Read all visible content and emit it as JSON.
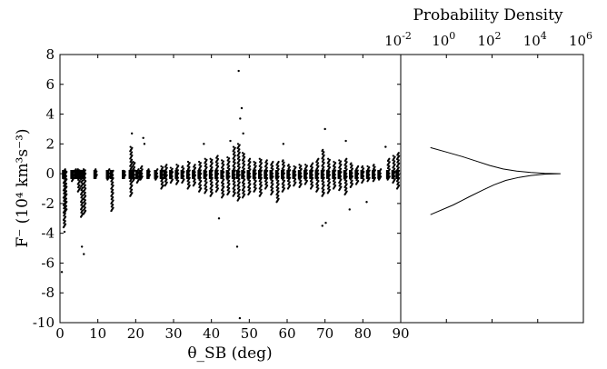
{
  "chart_data": [
    {
      "type": "scatter",
      "xlabel": "θ_SB (deg)",
      "ylabel": "F⁻ (10⁴ km³s⁻³)",
      "xlim": [
        0,
        90
      ],
      "ylim": [
        -10,
        8
      ],
      "xticks": [
        0,
        10,
        20,
        30,
        40,
        50,
        60,
        70,
        80,
        90
      ],
      "yticks": [
        -10,
        -8,
        -6,
        -4,
        -2,
        0,
        2,
        4,
        6,
        8
      ],
      "grid": false,
      "color": "#000000",
      "clusters": [
        {
          "x": 1.2,
          "lo": -3.6,
          "hi": 0.3
        },
        {
          "x": 1.5,
          "lo": -2.6,
          "hi": 0.2
        },
        {
          "x": 3.4,
          "lo": -0.5,
          "hi": 0.2
        },
        {
          "x": 4.3,
          "lo": -0.3,
          "hi": 0.3
        },
        {
          "x": 5.0,
          "lo": -1.2,
          "hi": 0.3
        },
        {
          "x": 5.8,
          "lo": -2.9,
          "hi": 0.2
        },
        {
          "x": 6.5,
          "lo": -2.7,
          "hi": 0.3
        },
        {
          "x": 9.5,
          "lo": -0.3,
          "hi": 0.3
        },
        {
          "x": 12.8,
          "lo": -0.4,
          "hi": 0.3
        },
        {
          "x": 13.8,
          "lo": -2.5,
          "hi": 0.2
        },
        {
          "x": 17.0,
          "lo": -0.3,
          "hi": 0.2
        },
        {
          "x": 18.8,
          "lo": -1.5,
          "hi": 1.8
        },
        {
          "x": 19.5,
          "lo": -0.5,
          "hi": 0.8
        },
        {
          "x": 20.6,
          "lo": -0.6,
          "hi": 0.3
        },
        {
          "x": 21.5,
          "lo": -0.4,
          "hi": 0.5
        },
        {
          "x": 23.5,
          "lo": -0.3,
          "hi": 0.3
        },
        {
          "x": 25.5,
          "lo": -0.4,
          "hi": 0.3
        },
        {
          "x": 27.0,
          "lo": -1.0,
          "hi": 0.5
        },
        {
          "x": 28.0,
          "lo": -0.8,
          "hi": 0.6
        },
        {
          "x": 29.5,
          "lo": -0.6,
          "hi": 0.4
        },
        {
          "x": 31.0,
          "lo": -0.7,
          "hi": 0.6
        },
        {
          "x": 32.5,
          "lo": -0.6,
          "hi": 0.5
        },
        {
          "x": 34.0,
          "lo": -1.0,
          "hi": 0.8
        },
        {
          "x": 35.5,
          "lo": -0.8,
          "hi": 0.6
        },
        {
          "x": 37.0,
          "lo": -1.2,
          "hi": 0.8
        },
        {
          "x": 38.5,
          "lo": -1.3,
          "hi": 1.0
        },
        {
          "x": 40.0,
          "lo": -1.5,
          "hi": 1.0
        },
        {
          "x": 41.5,
          "lo": -1.2,
          "hi": 1.2
        },
        {
          "x": 43.0,
          "lo": -1.6,
          "hi": 0.9
        },
        {
          "x": 44.5,
          "lo": -1.4,
          "hi": 1.1
        },
        {
          "x": 46.0,
          "lo": -1.5,
          "hi": 1.8
        },
        {
          "x": 47.2,
          "lo": -1.8,
          "hi": 2.0
        },
        {
          "x": 48.5,
          "lo": -1.6,
          "hi": 1.4
        },
        {
          "x": 50.0,
          "lo": -1.4,
          "hi": 1.0
        },
        {
          "x": 51.5,
          "lo": -1.2,
          "hi": 0.8
        },
        {
          "x": 53.0,
          "lo": -1.5,
          "hi": 1.0
        },
        {
          "x": 54.5,
          "lo": -1.0,
          "hi": 0.9
        },
        {
          "x": 56.0,
          "lo": -1.4,
          "hi": 0.8
        },
        {
          "x": 57.5,
          "lo": -1.9,
          "hi": 0.8
        },
        {
          "x": 59.0,
          "lo": -1.2,
          "hi": 0.9
        },
        {
          "x": 60.5,
          "lo": -1.0,
          "hi": 0.6
        },
        {
          "x": 62.0,
          "lo": -0.8,
          "hi": 0.5
        },
        {
          "x": 63.5,
          "lo": -0.9,
          "hi": 0.6
        },
        {
          "x": 65.0,
          "lo": -0.7,
          "hi": 0.6
        },
        {
          "x": 66.5,
          "lo": -1.0,
          "hi": 0.7
        },
        {
          "x": 68.0,
          "lo": -1.2,
          "hi": 1.0
        },
        {
          "x": 69.5,
          "lo": -1.5,
          "hi": 1.6
        },
        {
          "x": 71.0,
          "lo": -1.3,
          "hi": 1.0
        },
        {
          "x": 72.5,
          "lo": -1.0,
          "hi": 0.8
        },
        {
          "x": 74.0,
          "lo": -1.1,
          "hi": 0.9
        },
        {
          "x": 75.5,
          "lo": -1.4,
          "hi": 1.0
        },
        {
          "x": 77.0,
          "lo": -0.9,
          "hi": 0.7
        },
        {
          "x": 78.5,
          "lo": -0.7,
          "hi": 0.5
        },
        {
          "x": 80.0,
          "lo": -0.6,
          "hi": 0.5
        },
        {
          "x": 81.5,
          "lo": -0.5,
          "hi": 0.5
        },
        {
          "x": 83.0,
          "lo": -0.5,
          "hi": 0.6
        },
        {
          "x": 84.5,
          "lo": -0.4,
          "hi": 0.3
        },
        {
          "x": 86.8,
          "lo": -0.4,
          "hi": 1.0
        },
        {
          "x": 88.2,
          "lo": -0.6,
          "hi": 1.2
        },
        {
          "x": 89.3,
          "lo": -1.0,
          "hi": 1.4
        }
      ],
      "outliers": [
        {
          "x": 0.5,
          "y": -6.6
        },
        {
          "x": 1.2,
          "y": -3.9
        },
        {
          "x": 5.8,
          "y": -4.9
        },
        {
          "x": 6.3,
          "y": -5.4
        },
        {
          "x": 19.0,
          "y": 2.7
        },
        {
          "x": 22.0,
          "y": 2.4
        },
        {
          "x": 22.3,
          "y": 2.0
        },
        {
          "x": 42.0,
          "y": -3.0
        },
        {
          "x": 46.8,
          "y": -4.9
        },
        {
          "x": 47.2,
          "y": 6.9
        },
        {
          "x": 47.5,
          "y": -9.7
        },
        {
          "x": 48.0,
          "y": 4.4
        },
        {
          "x": 47.6,
          "y": 3.7
        },
        {
          "x": 48.4,
          "y": 2.7
        },
        {
          "x": 45.0,
          "y": 2.2
        },
        {
          "x": 70.0,
          "y": 3.0
        },
        {
          "x": 69.3,
          "y": -3.5
        },
        {
          "x": 70.2,
          "y": -3.3
        },
        {
          "x": 75.5,
          "y": 2.2
        },
        {
          "x": 76.5,
          "y": -2.4
        },
        {
          "x": 86.0,
          "y": 1.8
        },
        {
          "x": 38.0,
          "y": 2.0
        },
        {
          "x": 59.0,
          "y": 2.0
        },
        {
          "x": 81.0,
          "y": -1.9
        }
      ]
    },
    {
      "type": "line",
      "title": "Probability Density",
      "xscale": "log",
      "xlim": [
        0.01,
        1000000
      ],
      "xtick_bases": [
        "10",
        "10",
        "10",
        "10",
        "10"
      ],
      "xtick_exponents": [
        "-2",
        "0",
        "2",
        "4",
        "6"
      ],
      "xtick_values": [
        0.01,
        1,
        100,
        10000,
        1000000
      ],
      "ylim": [
        -10,
        8
      ],
      "series": [
        {
          "points": [
            [
              0.2,
              1.75
            ],
            [
              1,
              1.45
            ],
            [
              5,
              1.15
            ],
            [
              20,
              0.85
            ],
            [
              80,
              0.55
            ],
            [
              300,
              0.32
            ],
            [
              1200,
              0.18
            ],
            [
              5000,
              0.08
            ],
            [
              20000,
              0.02
            ],
            [
              100000,
              0.0
            ],
            [
              20000,
              -0.03
            ],
            [
              5000,
              -0.12
            ],
            [
              1500,
              -0.25
            ],
            [
              400,
              -0.45
            ],
            [
              120,
              -0.75
            ],
            [
              40,
              -1.1
            ],
            [
              10,
              -1.55
            ],
            [
              2,
              -2.1
            ],
            [
              0.2,
              -2.75
            ]
          ]
        }
      ]
    }
  ]
}
